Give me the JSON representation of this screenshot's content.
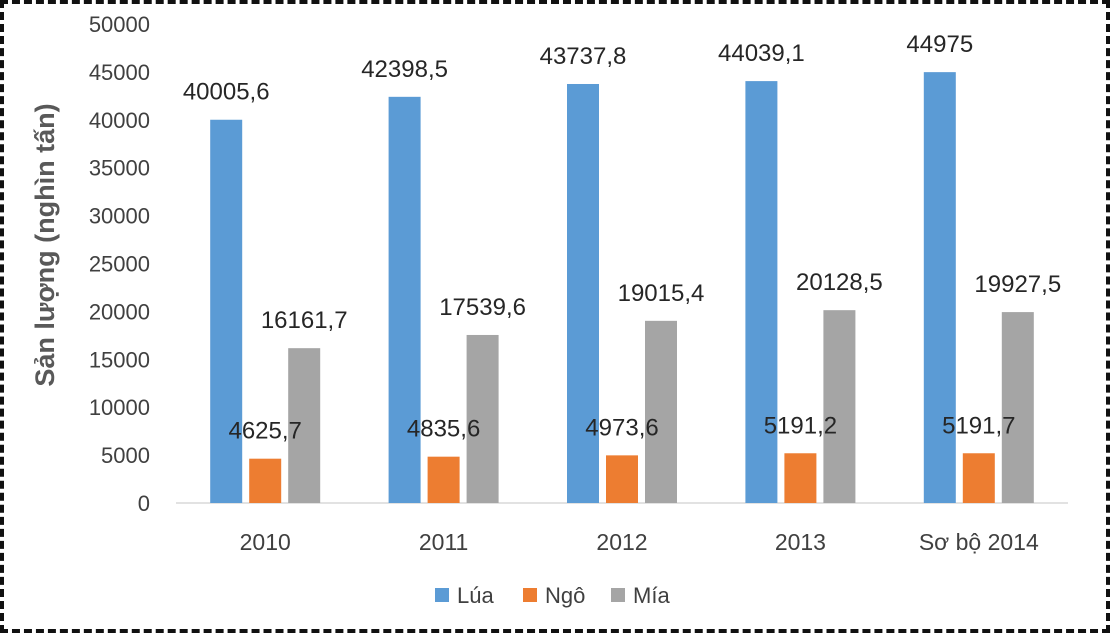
{
  "chart_data": {
    "type": "bar",
    "title": "",
    "xlabel": "",
    "ylabel": "Sản lượng (nghìn tấn)",
    "ylim": [
      0,
      50000
    ],
    "ytick_step": 5000,
    "grid": false,
    "legend_position": "bottom",
    "categories": [
      "2010",
      "2011",
      "2012",
      "2013",
      "Sơ bộ 2014"
    ],
    "series": [
      {
        "name": "Lúa",
        "color": "#5B9BD5",
        "values": [
          40005.6,
          42398.5,
          43737.8,
          44039.1,
          44975
        ],
        "labels": [
          "40005,6",
          "42398,5",
          "43737,8",
          "44039,1",
          "44975"
        ]
      },
      {
        "name": "Ngô",
        "color": "#ED7D31",
        "values": [
          4625.7,
          4835.6,
          4973.6,
          5191.2,
          5191.7
        ],
        "labels": [
          "4625,7",
          "4835,6",
          "4973,6",
          "5191,2",
          "5191,7"
        ]
      },
      {
        "name": "Mía",
        "color": "#A5A5A5",
        "values": [
          16161.7,
          17539.6,
          19015.4,
          20128.5,
          19927.5
        ],
        "labels": [
          "16161,7",
          "17539,6",
          "19015,4",
          "20128,5",
          "19927,5"
        ]
      }
    ]
  }
}
